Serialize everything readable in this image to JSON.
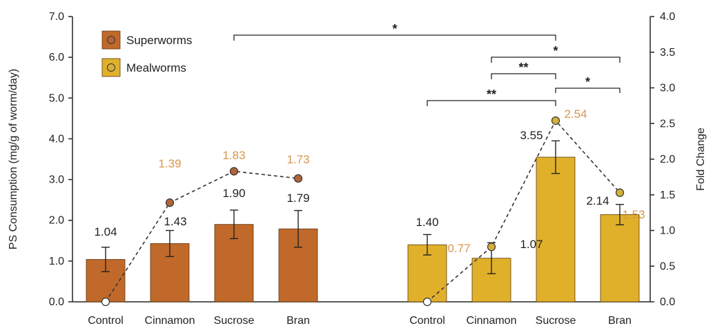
{
  "chart_data": {
    "type": "bar",
    "ylabel": "PS Consumption (mg/g of worm/day)",
    "y2label": "Fold Change",
    "ylim": [
      0,
      7
    ],
    "y2lim": [
      0,
      4
    ],
    "yticks": [
      "0.0",
      "1.0",
      "2.0",
      "3.0",
      "4.0",
      "5.0",
      "6.0",
      "7.0"
    ],
    "y2ticks": [
      "0.0",
      "0.5",
      "1.0",
      "1.5",
      "2.0",
      "2.5",
      "3.0",
      "3.5",
      "4.0"
    ],
    "grid": false,
    "legend_position": "top-left",
    "groups": [
      {
        "name": "Superworms",
        "color": "#C0692A",
        "point_color": "#B2643A",
        "label_color": "#D9964C",
        "categories": [
          "Control",
          "Cinnamon",
          "Sucrose",
          "Bran"
        ],
        "values": [
          1.04,
          1.43,
          1.9,
          1.79
        ],
        "value_labels": [
          "1.04",
          "1.43",
          "1.90",
          "1.79"
        ],
        "errors": [
          0.3,
          0.32,
          0.35,
          0.45
        ],
        "fold_change": [
          0,
          1.39,
          1.83,
          1.73
        ],
        "fold_labels": [
          "",
          "1.39",
          "1.83",
          "1.73"
        ]
      },
      {
        "name": "Mealworms",
        "color": "#E0B02A",
        "point_color": "#D7B03A",
        "label_color": "#D9964C",
        "categories": [
          "Control",
          "Cinnamon",
          "Sucrose",
          "Bran"
        ],
        "values": [
          1.4,
          1.07,
          3.55,
          2.14
        ],
        "value_labels": [
          "1.40",
          "1.07",
          "3.55",
          "2.14"
        ],
        "errors": [
          0.25,
          0.38,
          0.4,
          0.25
        ],
        "fold_change": [
          0,
          0.77,
          2.54,
          1.53
        ],
        "fold_labels": [
          "",
          "0.77",
          "2.54",
          "1.53"
        ]
      }
    ],
    "significance": [
      {
        "from": "Superworms Sucrose",
        "to": "Mealworms Sucrose",
        "stars": "*"
      },
      {
        "from": "Mealworms Cinnamon",
        "to": "Mealworms Bran",
        "stars": "*"
      },
      {
        "from": "Mealworms Cinnamon",
        "to": "Mealworms Sucrose",
        "stars": "**"
      },
      {
        "from": "Mealworms Sucrose",
        "to": "Mealworms Bran",
        "stars": "*"
      },
      {
        "from": "Mealworms Control",
        "to": "Mealworms Sucrose",
        "stars": "**"
      }
    ]
  }
}
